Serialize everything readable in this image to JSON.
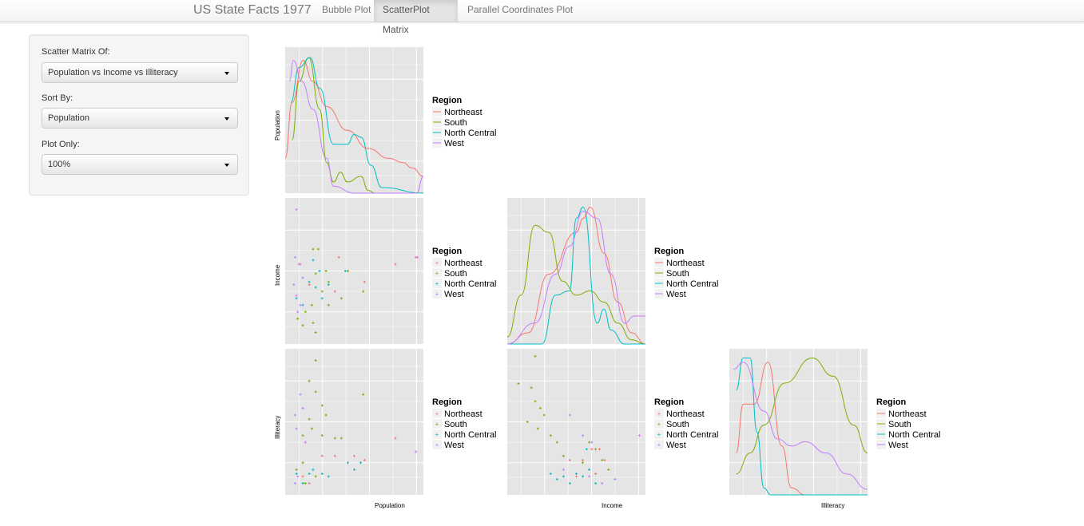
{
  "app": {
    "title": "US State Facts 1977"
  },
  "tabs": [
    {
      "label": "Bubble Plot",
      "active": false
    },
    {
      "label": "ScatterPlot Matrix",
      "active": true
    },
    {
      "label": "Parallel Coordinates Plot",
      "active": false
    }
  ],
  "controls": {
    "scatter_label": "Scatter Matrix Of:",
    "scatter_value": "Population vs Income vs Illiteracy",
    "sort_label": "Sort By:",
    "sort_value": "Population",
    "plot_label": "Plot Only:",
    "plot_value": "100%"
  },
  "legend": {
    "title": "Region",
    "entries": [
      "Northeast",
      "South",
      "North Central",
      "West"
    ],
    "colors": [
      "#F8766D",
      "#7CAE00",
      "#00BFC4",
      "#C77CFF"
    ]
  },
  "panel_style": {
    "background": "#E5E5E5",
    "grid": "#FFFFFF"
  },
  "axis_labels": {
    "population": "Population",
    "income": "Income",
    "illiteracy": "Illiteracy"
  },
  "chart_data": {
    "type": "scatter",
    "variables": [
      "Population",
      "Income",
      "Illiteracy"
    ],
    "density_curves": {
      "Population": [
        [
          [
            0,
            0.25
          ],
          [
            0.05,
            0.65
          ],
          [
            0.13,
            0.95
          ],
          [
            0.2,
            0.8
          ],
          [
            0.3,
            0.62
          ],
          [
            0.45,
            0.45
          ],
          [
            0.6,
            0.32
          ],
          [
            0.75,
            0.25
          ],
          [
            0.85,
            0.22
          ],
          [
            0.92,
            0.18
          ],
          [
            1,
            0.12
          ]
        ],
        [
          [
            0.05,
            0.38
          ],
          [
            0.1,
            0.8
          ],
          [
            0.17,
            0.97
          ],
          [
            0.25,
            0.6
          ],
          [
            0.3,
            0.22
          ],
          [
            0.35,
            0.08
          ],
          [
            0.4,
            0.15
          ],
          [
            0.45,
            0.08
          ],
          [
            0.55,
            0.12
          ],
          [
            0.6,
            0.02
          ],
          [
            0.65,
            0
          ]
        ],
        [
          [
            0.04,
            0.65
          ],
          [
            0.1,
            0.9
          ],
          [
            0.18,
            0.97
          ],
          [
            0.25,
            0.75
          ],
          [
            0.35,
            0.35
          ],
          [
            0.45,
            0.35
          ],
          [
            0.5,
            0.42
          ],
          [
            0.55,
            0.4
          ],
          [
            0.62,
            0.2
          ],
          [
            0.7,
            0.04
          ],
          [
            1,
            0
          ]
        ],
        [
          [
            0.03,
            0.8
          ],
          [
            0.06,
            0.95
          ],
          [
            0.12,
            0.8
          ],
          [
            0.2,
            0.6
          ],
          [
            0.3,
            0.25
          ],
          [
            0.35,
            0.05
          ],
          [
            0.5,
            0
          ],
          [
            0.95,
            0
          ],
          [
            1,
            0.12
          ]
        ]
      ],
      "Income": [
        [
          [
            0,
            0
          ],
          [
            0.15,
            0.08
          ],
          [
            0.3,
            0.5
          ],
          [
            0.5,
            0.8
          ],
          [
            0.55,
            0.9
          ],
          [
            0.6,
            0.98
          ],
          [
            0.7,
            0.65
          ],
          [
            0.8,
            0.3
          ],
          [
            0.9,
            0.08
          ],
          [
            1,
            0
          ]
        ],
        [
          [
            0,
            0.05
          ],
          [
            0.1,
            0.35
          ],
          [
            0.2,
            0.85
          ],
          [
            0.3,
            0.8
          ],
          [
            0.4,
            0.45
          ],
          [
            0.5,
            0.35
          ],
          [
            0.6,
            0.38
          ],
          [
            0.7,
            0.3
          ],
          [
            0.8,
            0.15
          ],
          [
            0.9,
            0.03
          ],
          [
            1,
            0
          ]
        ],
        [
          [
            0,
            0
          ],
          [
            0.25,
            0
          ],
          [
            0.35,
            0.35
          ],
          [
            0.45,
            0.38
          ],
          [
            0.5,
            0.9
          ],
          [
            0.55,
            0.98
          ],
          [
            0.65,
            0.15
          ],
          [
            0.7,
            0.25
          ],
          [
            0.75,
            0.1
          ],
          [
            0.85,
            0
          ],
          [
            1,
            0
          ]
        ],
        [
          [
            0,
            0
          ],
          [
            0.2,
            0.15
          ],
          [
            0.35,
            0.5
          ],
          [
            0.45,
            0.7
          ],
          [
            0.55,
            0.95
          ],
          [
            0.65,
            0.9
          ],
          [
            0.75,
            0.5
          ],
          [
            0.85,
            0.15
          ],
          [
            0.92,
            0.2
          ],
          [
            1,
            0.2
          ]
        ]
      ],
      "Illiteracy": [
        [
          [
            0.05,
            0.3
          ],
          [
            0.1,
            0.65
          ],
          [
            0.18,
            0.65
          ],
          [
            0.28,
            0.95
          ],
          [
            0.38,
            0.35
          ],
          [
            0.45,
            0.05
          ],
          [
            0.55,
            0
          ],
          [
            1,
            0
          ]
        ],
        [
          [
            0.05,
            0.15
          ],
          [
            0.15,
            0.3
          ],
          [
            0.25,
            0.5
          ],
          [
            0.4,
            0.8
          ],
          [
            0.6,
            0.98
          ],
          [
            0.75,
            0.85
          ],
          [
            0.9,
            0.5
          ],
          [
            1,
            0.3
          ]
        ],
        [
          [
            0.05,
            0.75
          ],
          [
            0.1,
            0.98
          ],
          [
            0.15,
            0.98
          ],
          [
            0.2,
            0.45
          ],
          [
            0.25,
            0.05
          ],
          [
            0.3,
            0
          ],
          [
            1,
            0
          ]
        ],
        [
          [
            0.03,
            0.9
          ],
          [
            0.1,
            0.95
          ],
          [
            0.25,
            0.6
          ],
          [
            0.35,
            0.4
          ],
          [
            0.45,
            0.35
          ],
          [
            0.55,
            0.38
          ],
          [
            0.7,
            0.3
          ],
          [
            0.85,
            0.15
          ],
          [
            1,
            0.04
          ]
        ]
      ]
    },
    "scatter_points": {
      "Population_Income": [
        [
          [
            0.38,
            0.6
          ],
          [
            0.35,
            0.35
          ],
          [
            0.82,
            0.55
          ],
          [
            0.58,
            0.42
          ],
          [
            0.15,
            0.4
          ],
          [
            0.08,
            0.55
          ],
          [
            0.98,
            0.6
          ]
        ],
        [
          [
            0.18,
            0.66
          ],
          [
            0.22,
            0.66
          ],
          [
            0.2,
            0.48
          ],
          [
            0.28,
            0.5
          ],
          [
            0.3,
            0.42
          ],
          [
            0.25,
            0.35
          ],
          [
            0.4,
            0.3
          ],
          [
            0.12,
            0.2
          ],
          [
            0.17,
            0.25
          ],
          [
            0.18,
            0.12
          ],
          [
            0.2,
            0.05
          ],
          [
            0.3,
            0.25
          ],
          [
            0.57,
            0.35
          ],
          [
            0.45,
            0.5
          ],
          [
            0.06,
            0.15
          ],
          [
            0.1,
            0.1
          ]
        ],
        [
          [
            0.18,
            0.58
          ],
          [
            0.23,
            0.5
          ],
          [
            0.3,
            0.4
          ],
          [
            0.43,
            0.5
          ],
          [
            0.15,
            0.42
          ],
          [
            0.2,
            0.38
          ],
          [
            0.1,
            0.25
          ],
          [
            0.05,
            0.3
          ],
          [
            0.25,
            0.3
          ]
        ],
        [
          [
            0.05,
            0.95
          ],
          [
            0.04,
            0.6
          ],
          [
            0.07,
            0.55
          ],
          [
            0.1,
            0.45
          ],
          [
            0.03,
            0.4
          ],
          [
            0.05,
            0.32
          ],
          [
            0.08,
            0.25
          ],
          [
            0.06,
            0.2
          ],
          [
            0.99,
            0.6
          ]
        ]
      ],
      "Population_Illiteracy": [
        [
          [
            0.25,
            0.25
          ],
          [
            0.35,
            0.25
          ],
          [
            0.5,
            0.25
          ],
          [
            0.82,
            0.38
          ],
          [
            0.58,
            0.22
          ],
          [
            0.1,
            0.1
          ],
          [
            0.15,
            0.05
          ]
        ],
        [
          [
            0.2,
            0.95
          ],
          [
            0.15,
            0.8
          ],
          [
            0.2,
            0.72
          ],
          [
            0.25,
            0.62
          ],
          [
            0.15,
            0.52
          ],
          [
            0.28,
            0.55
          ],
          [
            0.17,
            0.45
          ],
          [
            0.1,
            0.4
          ],
          [
            0.25,
            0.4
          ],
          [
            0.35,
            0.38
          ],
          [
            0.4,
            0.38
          ],
          [
            0.57,
            0.7
          ],
          [
            0.1,
            0.2
          ],
          [
            0.2,
            0.1
          ],
          [
            0.05,
            0.15
          ],
          [
            0.12,
            0.05
          ]
        ],
        [
          [
            0.05,
            0.12
          ],
          [
            0.15,
            0.12
          ],
          [
            0.25,
            0.12
          ],
          [
            0.1,
            0.05
          ],
          [
            0.3,
            0.1
          ],
          [
            0.45,
            0.2
          ],
          [
            0.5,
            0.15
          ],
          [
            0.55,
            0.2
          ],
          [
            0.18,
            0.15
          ]
        ],
        [
          [
            0.08,
            0.7
          ],
          [
            0.04,
            0.55
          ],
          [
            0.1,
            0.6
          ],
          [
            0.05,
            0.45
          ],
          [
            0.12,
            0.35
          ],
          [
            0.06,
            0.1
          ],
          [
            0.04,
            0.05
          ],
          [
            0.98,
            0.28
          ]
        ]
      ],
      "Income_Illiteracy": [
        [
          [
            0.45,
            0.22
          ],
          [
            0.55,
            0.22
          ],
          [
            0.62,
            0.3
          ],
          [
            0.68,
            0.3
          ],
          [
            0.72,
            0.22
          ],
          [
            0.65,
            0.12
          ],
          [
            0.5,
            0.1
          ]
        ],
        [
          [
            0.05,
            0.78
          ],
          [
            0.15,
            0.75
          ],
          [
            0.18,
            0.65
          ],
          [
            0.22,
            0.6
          ],
          [
            0.25,
            0.55
          ],
          [
            0.12,
            0.5
          ],
          [
            0.2,
            0.45
          ],
          [
            0.3,
            0.4
          ],
          [
            0.35,
            0.35
          ],
          [
            0.4,
            0.25
          ],
          [
            0.55,
            0.2
          ],
          [
            0.6,
            0.35
          ],
          [
            0.65,
            0.3
          ],
          [
            0.7,
            0.22
          ],
          [
            0.75,
            0.15
          ],
          [
            0.18,
            0.98
          ]
        ],
        [
          [
            0.4,
            0.1
          ],
          [
            0.45,
            0.05
          ],
          [
            0.5,
            0.12
          ],
          [
            0.55,
            0.1
          ],
          [
            0.6,
            0.15
          ],
          [
            0.65,
            0.05
          ],
          [
            0.3,
            0.12
          ],
          [
            0.35,
            0.08
          ],
          [
            0.58,
            0.3
          ]
        ],
        [
          [
            0.45,
            0.55
          ],
          [
            0.55,
            0.4
          ],
          [
            0.62,
            0.35
          ],
          [
            0.4,
            0.15
          ],
          [
            0.6,
            0.1
          ],
          [
            0.7,
            0.05
          ],
          [
            0.99,
            0.4
          ],
          [
            0.8,
            0.08
          ]
        ]
      ]
    }
  }
}
